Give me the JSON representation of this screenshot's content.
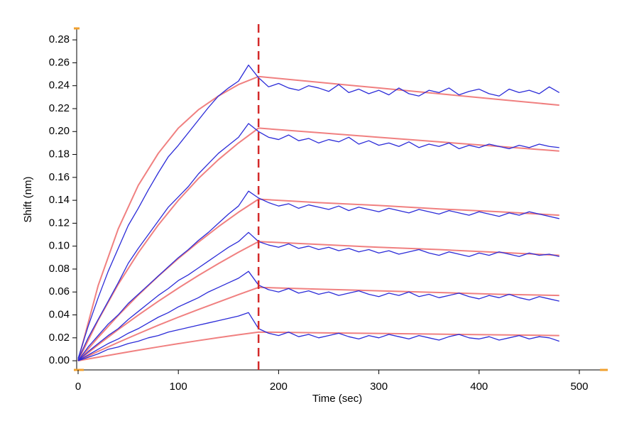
{
  "chart_data": {
    "type": "line",
    "x_label": "Time (sec)",
    "y_label": "Shift (nm)",
    "xlim": [
      0,
      528
    ],
    "ylim": [
      -0.008,
      0.29
    ],
    "xticks": [
      0,
      100,
      200,
      300,
      400,
      500
    ],
    "yticks": [
      {
        "value": 0,
        "label": "0.00"
      },
      {
        "value": 0.02,
        "label": "0.02"
      },
      {
        "value": 0.04,
        "label": "0.04"
      },
      {
        "value": 0.06,
        "label": "0.06"
      },
      {
        "value": 0.08,
        "label": "0.08"
      },
      {
        "value": 0.1,
        "label": "0.10"
      },
      {
        "value": 0.12,
        "label": "0.12"
      },
      {
        "value": 0.14,
        "label": "0.14"
      },
      {
        "value": 0.16,
        "label": "0.16"
      },
      {
        "value": 0.18,
        "label": "0.18"
      },
      {
        "value": 0.2,
        "label": "0.20"
      },
      {
        "value": 0.22,
        "label": "0.22"
      },
      {
        "value": 0.24,
        "label": "0.24"
      },
      {
        "value": 0.26,
        "label": "0.26"
      },
      {
        "value": 0.28,
        "label": "0.28"
      }
    ],
    "vline": {
      "x": 180,
      "color": "#d42a2a"
    },
    "x": [
      0,
      10,
      20,
      30,
      40,
      50,
      60,
      70,
      80,
      90,
      100,
      110,
      120,
      130,
      140,
      150,
      160,
      170,
      180,
      190,
      200,
      210,
      220,
      230,
      240,
      250,
      260,
      270,
      280,
      290,
      300,
      310,
      320,
      330,
      340,
      350,
      360,
      370,
      380,
      390,
      400,
      410,
      420,
      430,
      440,
      450,
      460,
      470,
      480
    ],
    "series": [
      {
        "color": "#2b2bd8",
        "values": [
          0.002,
          0.03,
          0.055,
          0.078,
          0.098,
          0.118,
          0.133,
          0.149,
          0.164,
          0.178,
          0.188,
          0.199,
          0.21,
          0.221,
          0.231,
          0.238,
          0.244,
          0.258,
          0.247,
          0.239,
          0.242,
          0.238,
          0.236,
          0.24,
          0.238,
          0.235,
          0.241,
          0.234,
          0.237,
          0.233,
          0.236,
          0.232,
          0.238,
          0.233,
          0.231,
          0.236,
          0.234,
          0.238,
          0.232,
          0.235,
          0.237,
          0.233,
          0.231,
          0.237,
          0.234,
          0.236,
          0.233,
          0.239,
          0.234
        ]
      },
      {
        "color": "#2b2bd8",
        "values": [
          0.001,
          0.02,
          0.036,
          0.052,
          0.068,
          0.085,
          0.098,
          0.11,
          0.122,
          0.134,
          0.143,
          0.152,
          0.163,
          0.172,
          0.181,
          0.188,
          0.195,
          0.207,
          0.2,
          0.195,
          0.193,
          0.197,
          0.192,
          0.194,
          0.19,
          0.193,
          0.191,
          0.195,
          0.189,
          0.192,
          0.188,
          0.19,
          0.187,
          0.191,
          0.186,
          0.189,
          0.187,
          0.19,
          0.185,
          0.188,
          0.186,
          0.189,
          0.187,
          0.185,
          0.188,
          0.186,
          0.189,
          0.187,
          0.186
        ]
      },
      {
        "color": "#2b2bd8",
        "values": [
          0,
          0.012,
          0.022,
          0.032,
          0.04,
          0.05,
          0.058,
          0.066,
          0.074,
          0.082,
          0.09,
          0.097,
          0.105,
          0.112,
          0.12,
          0.128,
          0.135,
          0.148,
          0.142,
          0.138,
          0.135,
          0.137,
          0.133,
          0.136,
          0.134,
          0.132,
          0.135,
          0.131,
          0.134,
          0.132,
          0.13,
          0.133,
          0.131,
          0.129,
          0.132,
          0.13,
          0.128,
          0.131,
          0.129,
          0.127,
          0.13,
          0.128,
          0.126,
          0.129,
          0.127,
          0.13,
          0.128,
          0.126,
          0.124
        ]
      },
      {
        "color": "#2b2bd8",
        "values": [
          0,
          0.008,
          0.015,
          0.022,
          0.028,
          0.036,
          0.043,
          0.05,
          0.057,
          0.063,
          0.07,
          0.075,
          0.081,
          0.087,
          0.093,
          0.099,
          0.104,
          0.112,
          0.104,
          0.101,
          0.099,
          0.102,
          0.098,
          0.1,
          0.097,
          0.099,
          0.096,
          0.098,
          0.095,
          0.097,
          0.094,
          0.096,
          0.093,
          0.095,
          0.097,
          0.094,
          0.092,
          0.095,
          0.093,
          0.091,
          0.094,
          0.092,
          0.095,
          0.093,
          0.091,
          0.094,
          0.092,
          0.093,
          0.091
        ]
      },
      {
        "color": "#2b2bd8",
        "values": [
          0,
          0.005,
          0.01,
          0.015,
          0.019,
          0.024,
          0.028,
          0.033,
          0.038,
          0.042,
          0.047,
          0.051,
          0.055,
          0.06,
          0.064,
          0.068,
          0.072,
          0.078,
          0.066,
          0.062,
          0.06,
          0.063,
          0.059,
          0.061,
          0.058,
          0.06,
          0.057,
          0.059,
          0.061,
          0.058,
          0.056,
          0.059,
          0.057,
          0.06,
          0.056,
          0.058,
          0.055,
          0.057,
          0.059,
          0.056,
          0.054,
          0.057,
          0.055,
          0.058,
          0.055,
          0.053,
          0.056,
          0.054,
          0.052
        ]
      },
      {
        "color": "#2b2bd8",
        "values": [
          0,
          0.003,
          0.006,
          0.01,
          0.012,
          0.015,
          0.017,
          0.02,
          0.022,
          0.025,
          0.027,
          0.029,
          0.031,
          0.033,
          0.035,
          0.037,
          0.039,
          0.042,
          0.028,
          0.024,
          0.022,
          0.025,
          0.021,
          0.023,
          0.02,
          0.022,
          0.024,
          0.021,
          0.019,
          0.022,
          0.02,
          0.023,
          0.021,
          0.019,
          0.022,
          0.02,
          0.018,
          0.021,
          0.023,
          0.02,
          0.019,
          0.021,
          0.018,
          0.02,
          0.022,
          0.019,
          0.021,
          0.02,
          0.017
        ]
      }
    ],
    "fit_x": [
      0,
      20,
      40,
      60,
      80,
      100,
      120,
      140,
      160,
      180,
      240,
      300,
      360,
      420,
      480
    ],
    "fits": [
      {
        "color": "#f08080",
        "values": [
          0,
          0.0656,
          0.115,
          0.153,
          0.181,
          0.203,
          0.219,
          0.231,
          0.241,
          0.248,
          0.243,
          0.238,
          0.233,
          0.228,
          0.223
        ]
      },
      {
        "color": "#f08080",
        "values": [
          0,
          0.0354,
          0.0667,
          0.0942,
          0.1185,
          0.14,
          0.159,
          0.1755,
          0.19,
          0.203,
          0.199,
          0.195,
          0.191,
          0.187,
          0.183
        ]
      },
      {
        "color": "#f08080",
        "values": [
          0,
          0.0204,
          0.0395,
          0.0573,
          0.0738,
          0.0892,
          0.1035,
          0.117,
          0.1296,
          0.141,
          0.138,
          0.1355,
          0.1325,
          0.13,
          0.127
        ]
      },
      {
        "color": "#f08080",
        "values": [
          0,
          0.0139,
          0.0272,
          0.0398,
          0.0519,
          0.0634,
          0.0744,
          0.0848,
          0.0947,
          0.104,
          0.1015,
          0.099,
          0.097,
          0.0945,
          0.092
        ]
      },
      {
        "color": "#f08080",
        "values": [
          0,
          0.0082,
          0.016,
          0.0236,
          0.031,
          0.038,
          0.0447,
          0.0512,
          0.0577,
          0.064,
          0.0625,
          0.061,
          0.0595,
          0.058,
          0.057
        ]
      },
      {
        "color": "#f08080",
        "values": [
          0,
          0.0031,
          0.0062,
          0.0092,
          0.0121,
          0.0149,
          0.0176,
          0.0202,
          0.0227,
          0.025,
          0.0244,
          0.0238,
          0.0232,
          0.0226,
          0.022
        ]
      }
    ]
  }
}
